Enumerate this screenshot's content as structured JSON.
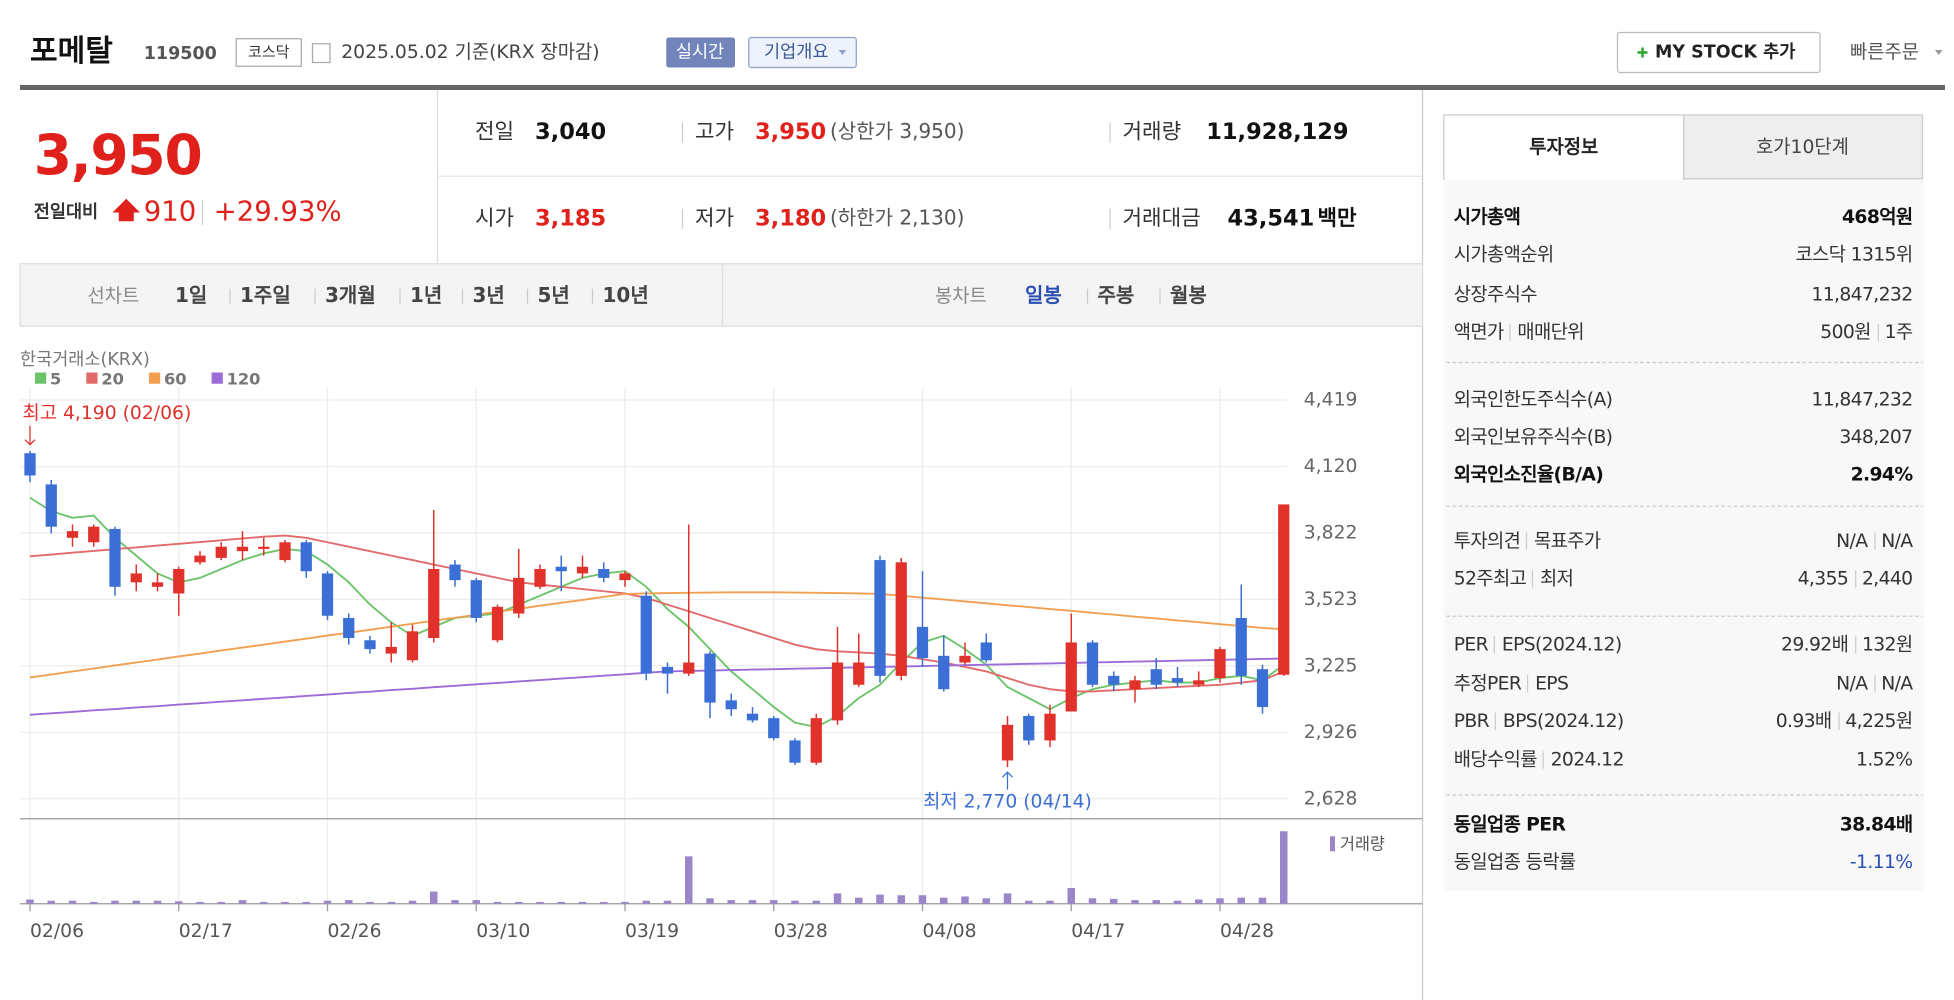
{
  "header": {
    "name": "포메탈",
    "code": "119500",
    "market": "코스닥",
    "date_basis": "2025.05.02 기준(KRX 장마감)",
    "realtime": "실시간",
    "company": "기업개요",
    "my_stock": "MY STOCK 추가",
    "quick_order": "빠른주문"
  },
  "quote": {
    "price": "3,950",
    "change_label": "전일대비",
    "change": "910",
    "change_rate": "+29.93%",
    "prev_close": {
      "label": "전일",
      "value": "3,040"
    },
    "high": {
      "label": "고가",
      "value": "3,950",
      "note": "(상한가 3,950)"
    },
    "volume": {
      "label": "거래량",
      "value": "11,928,129"
    },
    "open": {
      "label": "시가",
      "value": "3,185"
    },
    "low": {
      "label": "저가",
      "value": "3,180",
      "note": "(하한가 2,130)"
    },
    "amount": {
      "label": "거래대금",
      "value": "43,541",
      "unit": "백만"
    }
  },
  "tabs": {
    "line_label": "선차트",
    "line_periods": [
      "1일",
      "1주일",
      "3개월",
      "1년",
      "3년",
      "5년",
      "10년"
    ],
    "candle_label": "봉차트",
    "candle_periods": [
      "일봉",
      "주봉",
      "월봉"
    ],
    "active": "일봉"
  },
  "chart_data": {
    "type": "candlestick",
    "source": "한국거래소(KRX)",
    "categories": [
      "02/06",
      null,
      null,
      null,
      null,
      null,
      null,
      "02/17",
      null,
      null,
      null,
      null,
      null,
      null,
      "02/26",
      null,
      null,
      null,
      null,
      null,
      null,
      "03/10",
      null,
      null,
      null,
      null,
      null,
      null,
      "03/19",
      null,
      null,
      null,
      null,
      null,
      null,
      "03/28",
      null,
      null,
      null,
      null,
      null,
      null,
      "04/08",
      null,
      null,
      null,
      null,
      null,
      null,
      "04/17",
      null,
      null,
      null,
      null,
      null,
      null,
      "04/28",
      null,
      null,
      null
    ],
    "open": [
      4180,
      4040,
      3800,
      3780,
      3840,
      3600,
      3580,
      3550,
      3690,
      3710,
      3740,
      3750,
      3700,
      3780,
      3640,
      3440,
      3340,
      3280,
      3250,
      3350,
      3680,
      3610,
      3340,
      3460,
      3580,
      3670,
      3640,
      3660,
      3610,
      3540,
      3220,
      3190,
      3280,
      3070,
      3010,
      2990,
      2890,
      2790,
      2980,
      3140,
      3700,
      3180,
      3400,
      3270,
      3240,
      3330,
      2800,
      3000,
      2890,
      3020,
      3330,
      3180,
      3120,
      3210,
      3170,
      3140,
      3170,
      3440,
      3210,
      3185
    ],
    "high": [
      4190,
      4060,
      3860,
      3860,
      3850,
      3680,
      3640,
      3670,
      3740,
      3780,
      3830,
      3800,
      3790,
      3790,
      3650,
      3460,
      3360,
      3420,
      3410,
      3925,
      3700,
      3620,
      3500,
      3750,
      3680,
      3720,
      3720,
      3690,
      3650,
      3560,
      3240,
      3860,
      3290,
      3100,
      3040,
      3000,
      2900,
      3010,
      3400,
      3370,
      3720,
      3710,
      3650,
      3360,
      3330,
      3370,
      3000,
      3010,
      3050,
      3460,
      3340,
      3200,
      3180,
      3260,
      3220,
      3200,
      3310,
      3590,
      3230,
      3950
    ],
    "low": [
      4050,
      3820,
      3760,
      3760,
      3540,
      3560,
      3560,
      3450,
      3680,
      3700,
      3700,
      3720,
      3690,
      3620,
      3430,
      3320,
      3280,
      3240,
      3240,
      3330,
      3580,
      3420,
      3330,
      3440,
      3570,
      3560,
      3620,
      3600,
      3580,
      3160,
      3100,
      3180,
      2990,
      3000,
      2970,
      2890,
      2780,
      2780,
      2960,
      3130,
      3150,
      3160,
      3220,
      3110,
      3230,
      3240,
      2770,
      2870,
      2860,
      3020,
      3130,
      3110,
      3060,
      3120,
      3130,
      3130,
      3150,
      3140,
      3010,
      3180
    ],
    "close": [
      4080,
      3850,
      3830,
      3850,
      3580,
      3640,
      3600,
      3660,
      3720,
      3760,
      3760,
      3760,
      3780,
      3650,
      3450,
      3350,
      3300,
      3310,
      3380,
      3660,
      3610,
      3440,
      3490,
      3620,
      3660,
      3650,
      3670,
      3620,
      3640,
      3190,
      3190,
      3240,
      3060,
      3030,
      2980,
      2900,
      2790,
      2990,
      3240,
      3240,
      3180,
      3690,
      3260,
      3120,
      3270,
      3250,
      2960,
      2890,
      3010,
      3330,
      3140,
      3140,
      3160,
      3140,
      3150,
      3160,
      3300,
      3180,
      3040,
      3950
    ],
    "up_color": "#e0312b",
    "down_color": "#3b6fd6",
    "ylim": [
      2628,
      4419
    ],
    "yticks": [
      {
        "value": 2628,
        "label": "2,628"
      },
      {
        "value": 2926,
        "label": "2,926"
      },
      {
        "value": 3225,
        "label": "3,225"
      },
      {
        "value": 3523,
        "label": "3,523"
      },
      {
        "value": 3822,
        "label": "3,822"
      },
      {
        "value": 4120,
        "label": "4,120"
      },
      {
        "value": 4419,
        "label": "4,419"
      }
    ],
    "grid": true,
    "moving_averages": [
      {
        "name": "5",
        "color": "#6cc46a",
        "values": [
          3980,
          3920,
          3890,
          3900,
          3800,
          3720,
          3640,
          3600,
          3620,
          3660,
          3700,
          3730,
          3750,
          3740,
          3680,
          3600,
          3500,
          3420,
          3360,
          3400,
          3440,
          3450,
          3460,
          3500,
          3540,
          3580,
          3620,
          3640,
          3650,
          3580,
          3480,
          3400,
          3300,
          3200,
          3120,
          3040,
          2970,
          2950,
          3000,
          3080,
          3140,
          3240,
          3330,
          3360,
          3300,
          3230,
          3130,
          3080,
          3030,
          3080,
          3120,
          3140,
          3150,
          3160,
          3150,
          3150,
          3170,
          3180,
          3160,
          3230
        ]
      },
      {
        "name": "20",
        "color": "#e26a6a",
        "values": [
          3717,
          3725,
          3733,
          3741,
          3749,
          3757,
          3765,
          3773,
          3781,
          3789,
          3797,
          3805,
          3810,
          3800,
          3780,
          3760,
          3740,
          3720,
          3700,
          3680,
          3660,
          3640,
          3620,
          3600,
          3590,
          3580,
          3570,
          3560,
          3550,
          3530,
          3500,
          3470,
          3440,
          3410,
          3380,
          3350,
          3320,
          3300,
          3290,
          3285,
          3280,
          3270,
          3255,
          3240,
          3220,
          3200,
          3170,
          3140,
          3120,
          3110,
          3110,
          3115,
          3120,
          3125,
          3130,
          3135,
          3140,
          3150,
          3160,
          3200
        ]
      },
      {
        "name": "60",
        "color": "#f0a050",
        "values": [
          3173,
          3186,
          3200,
          3213,
          3227,
          3240,
          3253,
          3267,
          3280,
          3294,
          3307,
          3320,
          3334,
          3347,
          3361,
          3374,
          3387,
          3401,
          3414,
          3428,
          3441,
          3454,
          3468,
          3481,
          3495,
          3508,
          3521,
          3535,
          3548,
          3550,
          3552,
          3553,
          3554,
          3555,
          3555,
          3555,
          3554,
          3553,
          3552,
          3550,
          3548,
          3540,
          3531,
          3523,
          3514,
          3506,
          3497,
          3489,
          3480,
          3472,
          3463,
          3455,
          3446,
          3438,
          3429,
          3421,
          3412,
          3404,
          3395,
          3390
        ]
      },
      {
        "name": "120",
        "color": "#9b6cd8",
        "values": [
          3005,
          3012,
          3018,
          3025,
          3031,
          3038,
          3044,
          3051,
          3057,
          3064,
          3070,
          3077,
          3083,
          3090,
          3096,
          3103,
          3109,
          3116,
          3122,
          3129,
          3135,
          3142,
          3148,
          3155,
          3161,
          3168,
          3174,
          3181,
          3187,
          3194,
          3200,
          3202,
          3204,
          3206,
          3208,
          3210,
          3212,
          3214,
          3216,
          3218,
          3220,
          3222,
          3224,
          3226,
          3228,
          3230,
          3232,
          3234,
          3236,
          3238,
          3240,
          3242,
          3244,
          3246,
          3248,
          3250,
          3252,
          3254,
          3256,
          3258
        ]
      }
    ],
    "annotations": [
      {
        "label": "최고 4,190 (02/06)",
        "value": 4190,
        "color": "#e0312b"
      },
      {
        "label": "최저 2,770 (04/14)",
        "value": 2770,
        "color": "#3b6fd6"
      }
    ],
    "volume": {
      "name": "거래량",
      "color": "#9b86c9",
      "values": [
        700000,
        500000,
        500000,
        300000,
        500000,
        500000,
        500000,
        400000,
        300000,
        300000,
        600000,
        300000,
        300000,
        300000,
        500000,
        600000,
        300000,
        300000,
        500000,
        2000000,
        600000,
        600000,
        300000,
        300000,
        300000,
        300000,
        300000,
        300000,
        300000,
        500000,
        500000,
        7800000,
        900000,
        600000,
        600000,
        600000,
        500000,
        500000,
        1700000,
        1000000,
        1500000,
        1400000,
        1400000,
        1000000,
        1200000,
        900000,
        1700000,
        500000,
        500000,
        2600000,
        900000,
        800000,
        600000,
        600000,
        500000,
        700000,
        900000,
        1000000,
        1000000,
        11928129
      ]
    }
  },
  "info": {
    "tabs": [
      "투자정보",
      "호가10단계"
    ],
    "sections": [
      [
        {
          "labels": [
            "시가총액"
          ],
          "values": [
            "468억원"
          ],
          "bold": true
        },
        {
          "labels": [
            "시가총액순위"
          ],
          "values": [
            "코스닥 1315위"
          ]
        },
        {
          "labels": [
            "상장주식수"
          ],
          "values": [
            "11,847,232"
          ]
        },
        {
          "labels": [
            "액면가",
            "매매단위"
          ],
          "values": [
            "500원",
            "1주"
          ]
        }
      ],
      [
        {
          "labels": [
            "외국인한도주식수(A)"
          ],
          "values": [
            "11,847,232"
          ]
        },
        {
          "labels": [
            "외국인보유주식수(B)"
          ],
          "values": [
            "348,207"
          ]
        },
        {
          "labels": [
            "외국인소진율(B/A)"
          ],
          "values": [
            "2.94%"
          ],
          "bold": true
        }
      ],
      [
        {
          "labels": [
            "투자의견",
            "목표주가"
          ],
          "values": [
            "N/A",
            "N/A"
          ]
        },
        {
          "labels": [
            "52주최고",
            "최저"
          ],
          "values": [
            "4,355",
            "2,440"
          ]
        }
      ],
      [
        {
          "labels": [
            "PER",
            "EPS(2024.12)"
          ],
          "values": [
            "29.92배",
            "132원"
          ]
        },
        {
          "labels": [
            "추정PER",
            "EPS"
          ],
          "values": [
            "N/A",
            "N/A"
          ]
        },
        {
          "labels": [
            "PBR",
            "BPS(2024.12)"
          ],
          "values": [
            "0.93배",
            "4,225원"
          ]
        },
        {
          "labels": [
            "배당수익률",
            "2024.12"
          ],
          "values": [
            "1.52%"
          ]
        }
      ],
      [
        {
          "labels": [
            "동일업종 PER"
          ],
          "values": [
            "38.84배"
          ],
          "bold": true
        },
        {
          "labels": [
            "동일업종 등락률"
          ],
          "values": [
            "-1.11%"
          ],
          "color": "#2b50b5"
        }
      ]
    ]
  }
}
